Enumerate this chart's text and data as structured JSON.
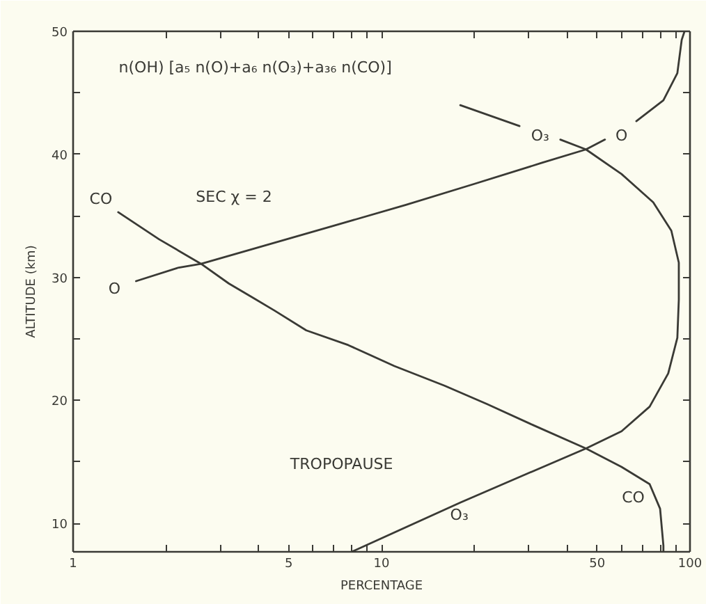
{
  "chart_data": {
    "type": "line",
    "xlabel": "PERCENTAGE",
    "ylabel": "ALTITUDE (km)",
    "log": "x",
    "xlim": [
      1,
      100
    ],
    "ylim": [
      7.7,
      50
    ],
    "xticks": [
      1,
      {
        "value": 2,
        "label": null
      },
      {
        "value": 3,
        "label": null
      },
      {
        "value": 4,
        "label": null
      },
      5,
      {
        "value": 6,
        "label": null
      },
      {
        "value": 7,
        "label": null
      },
      {
        "value": 8,
        "label": null
      },
      {
        "value": 9,
        "label": null
      },
      10,
      {
        "value": 20,
        "label": null
      },
      {
        "value": 30,
        "label": null
      },
      {
        "value": 40,
        "label": null
      },
      50,
      {
        "value": 60,
        "label": null
      },
      {
        "value": 70,
        "label": null
      },
      {
        "value": 80,
        "label": null
      },
      {
        "value": 90,
        "label": null
      },
      100
    ],
    "yticks": [
      10,
      {
        "value": 15,
        "label": null
      },
      20,
      {
        "value": 25,
        "label": null
      },
      30,
      {
        "value": 35,
        "label": null
      },
      40,
      {
        "value": 45,
        "label": null
      },
      50
    ],
    "series": [
      {
        "name": "O",
        "color": "#3a3a35",
        "x": [
          1.6,
          2.2,
          2.6,
          4.2,
          7.0,
          12,
          20,
          33,
          46,
          53,
          60,
          67,
          82,
          91,
          94,
          96
        ],
        "values": [
          29.7,
          30.8,
          31.1,
          32.6,
          34.2,
          35.9,
          37.6,
          39.3,
          40.4,
          41.2,
          null,
          42.7,
          44.4,
          46.6,
          49.3,
          50
        ]
      },
      {
        "name": "O₃",
        "color": "#3a3a35",
        "x": [
          8.0,
          18,
          30,
          46,
          60,
          74,
          85,
          91,
          92,
          92,
          87,
          76,
          60,
          46,
          38,
          33,
          28,
          18
        ],
        "values": [
          7.7,
          11.7,
          14.1,
          16.1,
          17.5,
          19.5,
          22.2,
          25.1,
          28.2,
          31.2,
          33.8,
          36.1,
          38.4,
          40.4,
          41.2,
          null,
          42.3,
          44.0
        ]
      },
      {
        "name": "CO",
        "color": "#3a3a35",
        "x": [
          1.4,
          1.9,
          2.6,
          3.2,
          3.8,
          4.5,
          5.7,
          7.8,
          11,
          16,
          22,
          31,
          46,
          60,
          74,
          80,
          82,
          82
        ],
        "values": [
          35.3,
          33.1,
          31.1,
          29.5,
          28.4,
          27.3,
          25.7,
          24.5,
          22.8,
          21.2,
          19.7,
          18.0,
          16.1,
          14.6,
          13.2,
          11.2,
          8.2,
          7.7
        ]
      }
    ],
    "annotations": [
      "n(OH) [a₅ n(O)+a₆ n(O₃)+a₃₆ n(CO)]",
      "SEC χ = 2",
      "TROPOPAUSE"
    ]
  }
}
